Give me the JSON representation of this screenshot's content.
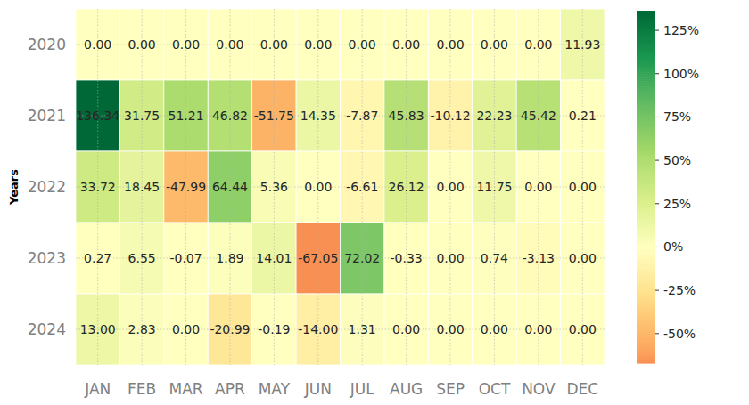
{
  "chart_data": {
    "type": "heatmap",
    "ylabel": "Years",
    "categories": [
      "JAN",
      "FEB",
      "MAR",
      "APR",
      "MAY",
      "JUN",
      "JUL",
      "AUG",
      "SEP",
      "OCT",
      "NOV",
      "DEC"
    ],
    "y_categories": [
      "2020",
      "2021",
      "2022",
      "2023",
      "2024"
    ],
    "values": [
      [
        0,
        0,
        0,
        0,
        0,
        0,
        0,
        0,
        0,
        0,
        0,
        11.93
      ],
      [
        136.34,
        31.75,
        51.21,
        46.82,
        -51.75,
        14.35,
        -7.87,
        45.83,
        -10.12,
        22.23,
        45.42,
        0.21
      ],
      [
        33.72,
        18.45,
        -47.99,
        64.44,
        5.36,
        0,
        -6.61,
        26.12,
        0,
        11.75,
        0,
        0
      ],
      [
        0.27,
        6.55,
        -0.07,
        1.89,
        14.01,
        -67.05,
        72.02,
        -0.33,
        0,
        0.74,
        -3.13,
        0
      ],
      [
        13,
        2.83,
        0,
        -20.99,
        -0.19,
        -14,
        1.31,
        0,
        0,
        0,
        0,
        0
      ]
    ],
    "value_labels": [
      [
        "0.00",
        "0.00",
        "0.00",
        "0.00",
        "0.00",
        "0.00",
        "0.00",
        "0.00",
        "0.00",
        "0.00",
        "0.00",
        "11.93"
      ],
      [
        "136.34",
        "31.75",
        "51.21",
        "46.82",
        "-51.75",
        "14.35",
        "-7.87",
        "45.83",
        "-10.12",
        "22.23",
        "45.42",
        "0.21"
      ],
      [
        "33.72",
        "18.45",
        "-47.99",
        "64.44",
        "5.36",
        "0.00",
        "-6.61",
        "26.12",
        "0.00",
        "11.75",
        "0.00",
        "0.00"
      ],
      [
        "0.27",
        "6.55",
        "-0.07",
        "1.89",
        "14.01",
        "-67.05",
        "72.02",
        "-0.33",
        "0.00",
        "0.74",
        "-3.13",
        "0.00"
      ],
      [
        "13.00",
        "2.83",
        "0.00",
        "-20.99",
        "-0.19",
        "-14.00",
        "1.31",
        "0.00",
        "0.00",
        "0.00",
        "0.00",
        "0.00"
      ]
    ],
    "clim": [
      -67.05,
      136.34
    ],
    "cticks": [
      {
        "value": -50,
        "label": "-50%"
      },
      {
        "value": -25,
        "label": "-25%"
      },
      {
        "value": 0,
        "label": "0%"
      },
      {
        "value": 25,
        "label": "25%"
      },
      {
        "value": 50,
        "label": "50%"
      },
      {
        "value": 75,
        "label": "75%"
      },
      {
        "value": 100,
        "label": "100%"
      },
      {
        "value": 125,
        "label": "125%"
      }
    ],
    "color": "RdYlGn",
    "grid": true,
    "data_labels": true
  }
}
